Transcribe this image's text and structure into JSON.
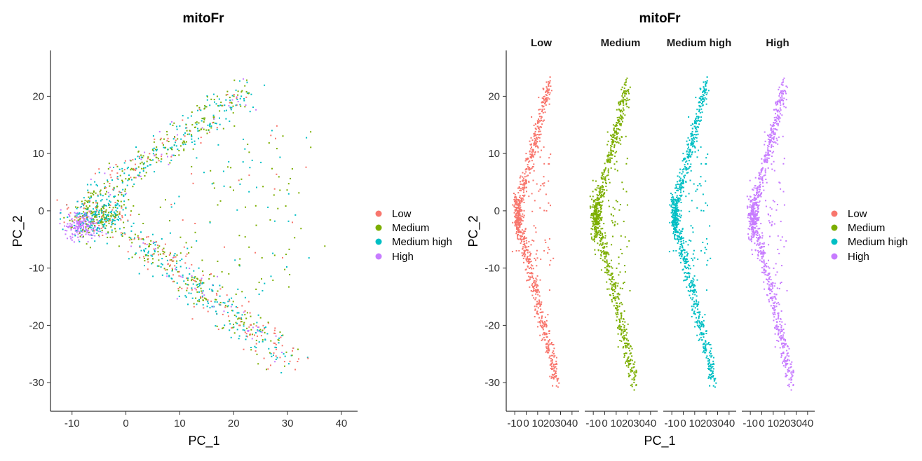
{
  "colors": {
    "Low": "#F8766D",
    "Medium": "#7CAE00",
    "Medium high": "#00BFC4",
    "High": "#C77CFF"
  },
  "chart_data": [
    {
      "type": "scatter",
      "title": "mitoFr",
      "xlabel": "PC_1",
      "ylabel": "PC_2",
      "xlim": [
        -13.5,
        43
      ],
      "ylim": [
        -35,
        28
      ],
      "xticks": [
        -10,
        0,
        10,
        20,
        30,
        40
      ],
      "yticks": [
        -30,
        -20,
        -10,
        0,
        10,
        20
      ],
      "legend_entries": [
        "Low",
        "Medium",
        "Medium high",
        "High"
      ],
      "legend_position": "right",
      "grid": false,
      "series": [
        {
          "name": "Low",
          "clusters": [
            {
              "x": -6,
              "y": -2,
              "n": 60
            },
            {
              "x": 10,
              "y": 12,
              "n": 50
            },
            {
              "x": 27,
              "y": -25,
              "n": 90
            },
            {
              "x": 20,
              "y": -16,
              "n": 60
            }
          ],
          "range": {
            "x": [
              -11,
              38
            ],
            "y": [
              -32,
              23
            ]
          }
        },
        {
          "name": "Medium",
          "clusters": [
            {
              "x": -2,
              "y": 1,
              "n": 80
            },
            {
              "x": 15,
              "y": 16,
              "n": 80
            },
            {
              "x": 12,
              "y": -10,
              "n": 80
            },
            {
              "x": 25,
              "y": -22,
              "n": 60
            }
          ],
          "range": {
            "x": [
              -11,
              37
            ],
            "y": [
              -31,
              24
            ]
          }
        },
        {
          "name": "Medium high",
          "clusters": [
            {
              "x": -4,
              "y": -1,
              "n": 80
            },
            {
              "x": 17,
              "y": 17,
              "n": 80
            },
            {
              "x": 12,
              "y": -12,
              "n": 80
            },
            {
              "x": 24,
              "y": -23,
              "n": 50
            }
          ],
          "range": {
            "x": [
              -11,
              36
            ],
            "y": [
              -31,
              23
            ]
          }
        },
        {
          "name": "High",
          "clusters": [
            {
              "x": -9,
              "y": -3,
              "n": 80
            },
            {
              "x": 14,
              "y": 14,
              "n": 40
            },
            {
              "x": 14,
              "y": -12,
              "n": 40
            }
          ],
          "range": {
            "x": [
              -11,
              37
            ],
            "y": [
              -32,
              25
            ]
          }
        }
      ]
    },
    {
      "type": "scatter",
      "title": "mitoFr",
      "xlabel": "PC_1",
      "ylabel": "PC_2",
      "facets": [
        "Low",
        "Medium",
        "Medium high",
        "High"
      ],
      "xlim": [
        -15,
        45
      ],
      "ylim": [
        -35,
        28
      ],
      "xtick_labels": [
        "-10",
        "0",
        "10",
        "20",
        "30",
        "40"
      ],
      "xticks": [
        -10,
        0,
        10,
        20,
        30,
        40
      ],
      "yticks": [
        -30,
        -20,
        -10,
        0,
        10,
        20
      ],
      "legend_entries": [
        "Low",
        "Medium",
        "Medium high",
        "High"
      ],
      "legend_position": "right",
      "grid": false,
      "upper_arm": {
        "from": [
          -6,
          2
        ],
        "to": [
          20,
          22
        ]
      },
      "lower_arm": {
        "from": [
          -5,
          -4
        ],
        "to": [
          28,
          -31
        ]
      },
      "core": {
        "x": -7,
        "y": -1
      }
    }
  ]
}
